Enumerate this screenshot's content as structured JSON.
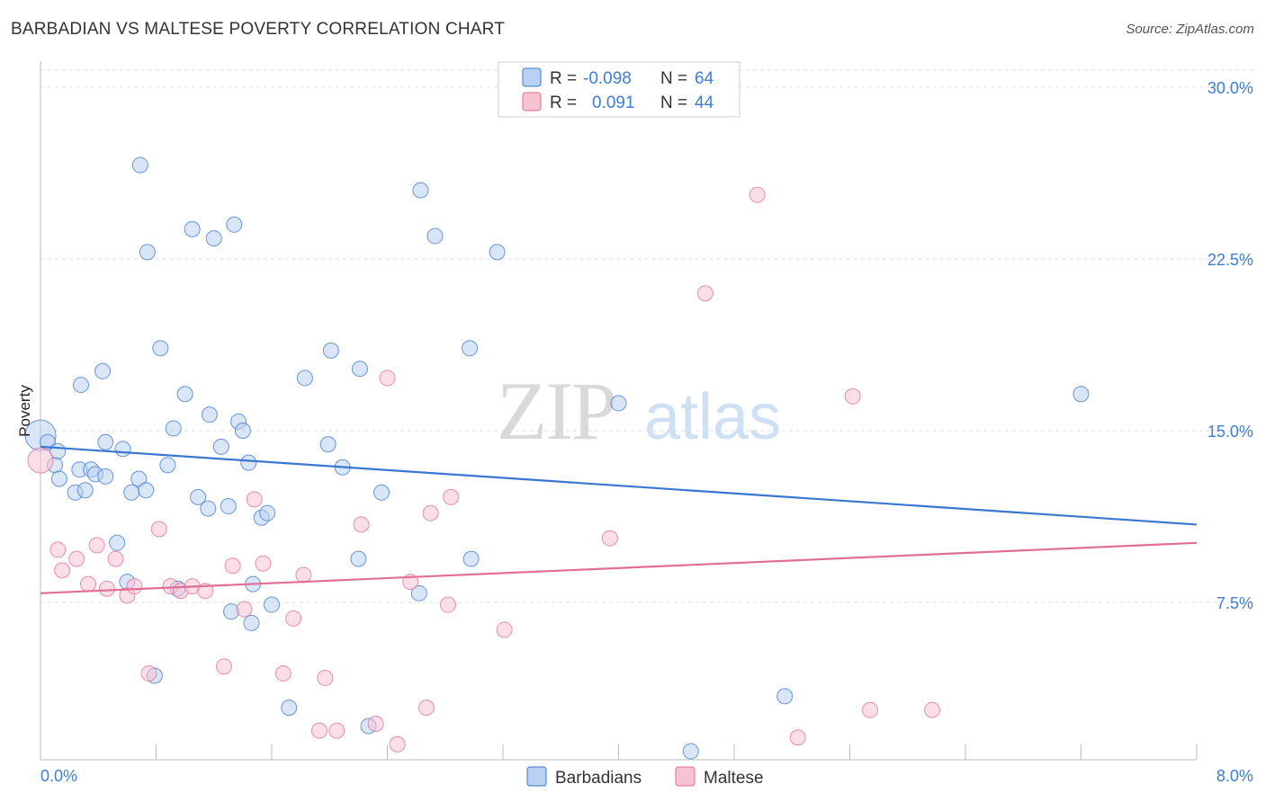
{
  "title": "BARBADIAN VS MALTESE POVERTY CORRELATION CHART",
  "source": "Source: ZipAtlas.com",
  "watermark": {
    "zip": "ZIP",
    "atlas": "atlas"
  },
  "colors": {
    "blue": "#3a77d0",
    "blue_fill": "#b9d2f3",
    "pink": "#e06e96",
    "pink_fill": "#f7c3d3",
    "tick": "#3d7dd6",
    "grid": "#dddddd"
  },
  "legend_stats": [
    {
      "r_label": "R =",
      "r_value": "-0.098",
      "n_label": "N =",
      "n_value": "64",
      "color": "#3a77d0"
    },
    {
      "r_label": "R =",
      "r_value": " 0.091",
      "n_label": "N =",
      "n_value": "44",
      "color": "#e06e96"
    }
  ],
  "bottom_legend": [
    "Barbadians",
    "Maltese"
  ],
  "chart_data": {
    "type": "scatter",
    "xlabel": "",
    "ylabel": "Poverty",
    "xlim": [
      0,
      8
    ],
    "ylim": [
      0,
      31
    ],
    "x_tick_labels": [
      "0.0%",
      "8.0%"
    ],
    "y_ticks": [
      7.5,
      15.0,
      22.5,
      30.0
    ],
    "y_tick_labels": [
      "7.5%",
      "15.0%",
      "22.5%",
      "30.0%"
    ],
    "grid": true,
    "legend_position": "top-center",
    "series": [
      {
        "name": "Barbadians",
        "color": "#3a77d0",
        "trend": {
          "x0": 0,
          "y0": 14.3,
          "x1": 8,
          "y1": 10.9
        },
        "points": [
          [
            0.0,
            14.8
          ],
          [
            0.05,
            14.5
          ],
          [
            0.1,
            13.5
          ],
          [
            0.12,
            14.1
          ],
          [
            0.13,
            12.9
          ],
          [
            0.24,
            12.3
          ],
          [
            0.27,
            13.3
          ],
          [
            0.31,
            12.4
          ],
          [
            0.35,
            13.3
          ],
          [
            0.38,
            13.1
          ],
          [
            0.45,
            13.0
          ],
          [
            0.28,
            17.0
          ],
          [
            0.43,
            17.6
          ],
          [
            0.45,
            14.5
          ],
          [
            0.53,
            10.1
          ],
          [
            0.57,
            14.2
          ],
          [
            0.6,
            8.4
          ],
          [
            0.63,
            12.3
          ],
          [
            0.68,
            12.9
          ],
          [
            0.73,
            12.4
          ],
          [
            0.69,
            26.6
          ],
          [
            0.74,
            22.8
          ],
          [
            0.79,
            4.3
          ],
          [
            0.83,
            18.6
          ],
          [
            0.88,
            13.5
          ],
          [
            0.92,
            15.1
          ],
          [
            0.95,
            8.1
          ],
          [
            1.0,
            16.6
          ],
          [
            1.05,
            23.8
          ],
          [
            1.09,
            12.1
          ],
          [
            1.16,
            11.6
          ],
          [
            1.17,
            15.7
          ],
          [
            1.2,
            23.4
          ],
          [
            1.25,
            14.3
          ],
          [
            1.3,
            11.7
          ],
          [
            1.34,
            24.0
          ],
          [
            1.32,
            7.1
          ],
          [
            1.37,
            15.4
          ],
          [
            1.4,
            15.0
          ],
          [
            1.44,
            13.6
          ],
          [
            1.47,
            8.3
          ],
          [
            1.46,
            6.6
          ],
          [
            1.53,
            11.2
          ],
          [
            1.57,
            11.4
          ],
          [
            1.6,
            7.4
          ],
          [
            1.72,
            2.9
          ],
          [
            1.83,
            17.3
          ],
          [
            1.99,
            14.4
          ],
          [
            2.01,
            18.5
          ],
          [
            2.09,
            13.4
          ],
          [
            2.2,
            9.4
          ],
          [
            2.21,
            17.7
          ],
          [
            2.36,
            12.3
          ],
          [
            2.27,
            2.1
          ],
          [
            2.62,
            7.9
          ],
          [
            2.63,
            25.5
          ],
          [
            2.73,
            23.5
          ],
          [
            2.97,
            18.6
          ],
          [
            2.98,
            9.4
          ],
          [
            3.16,
            22.8
          ],
          [
            4.0,
            16.2
          ],
          [
            4.5,
            1.0
          ],
          [
            5.15,
            3.4
          ],
          [
            7.2,
            16.6
          ]
        ]
      },
      {
        "name": "Maltese",
        "color": "#e06e96",
        "trend": {
          "x0": 0,
          "y0": 7.9,
          "x1": 8,
          "y1": 10.1
        },
        "points": [
          [
            0.0,
            13.7
          ],
          [
            0.12,
            9.8
          ],
          [
            0.15,
            8.9
          ],
          [
            0.25,
            9.4
          ],
          [
            0.33,
            8.3
          ],
          [
            0.39,
            10.0
          ],
          [
            0.46,
            8.1
          ],
          [
            0.52,
            9.4
          ],
          [
            0.6,
            7.8
          ],
          [
            0.65,
            8.2
          ],
          [
            0.75,
            4.4
          ],
          [
            0.82,
            10.7
          ],
          [
            0.9,
            8.2
          ],
          [
            0.97,
            8.0
          ],
          [
            1.05,
            8.2
          ],
          [
            1.14,
            8.0
          ],
          [
            1.27,
            4.7
          ],
          [
            1.33,
            9.1
          ],
          [
            1.41,
            7.2
          ],
          [
            1.48,
            12.0
          ],
          [
            1.54,
            9.2
          ],
          [
            1.68,
            4.4
          ],
          [
            1.75,
            6.8
          ],
          [
            1.82,
            8.7
          ],
          [
            1.93,
            1.9
          ],
          [
            1.97,
            4.2
          ],
          [
            2.05,
            1.9
          ],
          [
            2.22,
            10.9
          ],
          [
            2.32,
            2.2
          ],
          [
            2.4,
            17.3
          ],
          [
            2.47,
            1.3
          ],
          [
            2.56,
            8.4
          ],
          [
            2.67,
            2.9
          ],
          [
            2.7,
            11.4
          ],
          [
            2.82,
            7.4
          ],
          [
            2.84,
            12.1
          ],
          [
            3.21,
            6.3
          ],
          [
            3.94,
            10.3
          ],
          [
            4.6,
            21.0
          ],
          [
            4.96,
            25.3
          ],
          [
            5.24,
            1.6
          ],
          [
            5.62,
            16.5
          ],
          [
            5.74,
            2.8
          ],
          [
            6.17,
            2.8
          ]
        ]
      }
    ]
  }
}
